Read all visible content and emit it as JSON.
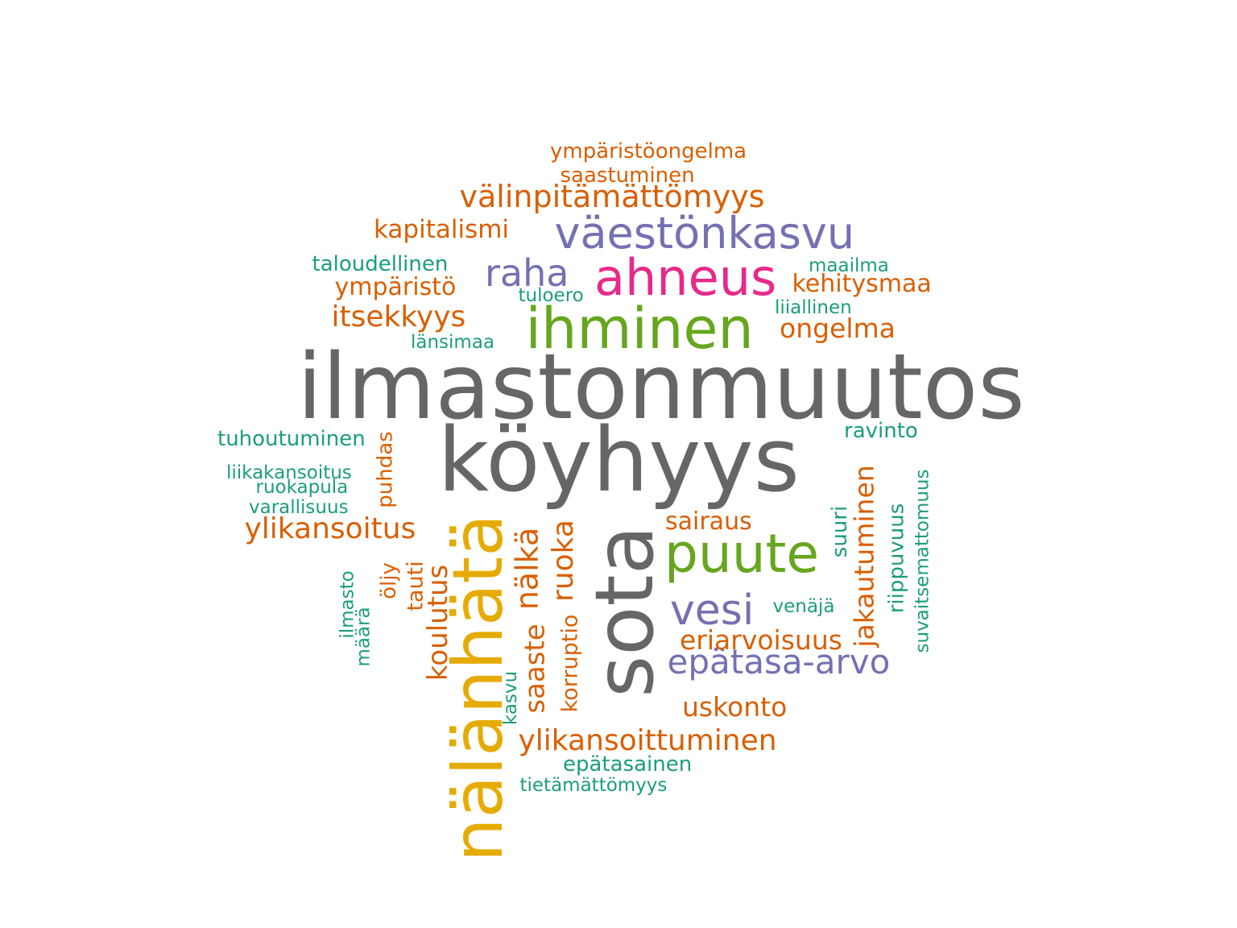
{
  "palette": {
    "dark_gray": "#666666",
    "gold": "#E6AB02",
    "green": "#66A61E",
    "magenta": "#E7298A",
    "purple": "#7570B3",
    "orange": "#D95F02",
    "teal": "#1B9E77"
  },
  "words": [
    {
      "text": "ilmastonmuutos",
      "color": "dark_gray",
      "orientation": "horizontal"
    },
    {
      "text": "köyhyys",
      "color": "dark_gray",
      "orientation": "horizontal"
    },
    {
      "text": "sota",
      "color": "dark_gray",
      "orientation": "vertical"
    },
    {
      "text": "nälänhätä",
      "color": "gold",
      "orientation": "vertical"
    },
    {
      "text": "ihminen",
      "color": "green",
      "orientation": "horizontal"
    },
    {
      "text": "puute",
      "color": "green",
      "orientation": "horizontal"
    },
    {
      "text": "ahneus",
      "color": "magenta",
      "orientation": "horizontal"
    },
    {
      "text": "väestönkasvu",
      "color": "purple",
      "orientation": "horizontal"
    },
    {
      "text": "raha",
      "color": "purple",
      "orientation": "horizontal"
    },
    {
      "text": "vesi",
      "color": "purple",
      "orientation": "horizontal"
    },
    {
      "text": "epätasa-arvo",
      "color": "purple",
      "orientation": "horizontal"
    },
    {
      "text": "ympäristöongelma",
      "color": "orange",
      "orientation": "horizontal"
    },
    {
      "text": "saastuminen",
      "color": "orange",
      "orientation": "horizontal"
    },
    {
      "text": "välinpitämättömyys",
      "color": "orange",
      "orientation": "horizontal"
    },
    {
      "text": "kapitalismi",
      "color": "orange",
      "orientation": "horizontal"
    },
    {
      "text": "ympäristö",
      "color": "orange",
      "orientation": "horizontal"
    },
    {
      "text": "kehitysmaa",
      "color": "orange",
      "orientation": "horizontal"
    },
    {
      "text": "itsekkyys",
      "color": "orange",
      "orientation": "horizontal"
    },
    {
      "text": "ongelma",
      "color": "orange",
      "orientation": "horizontal"
    },
    {
      "text": "ylikansoitus",
      "color": "orange",
      "orientation": "horizontal"
    },
    {
      "text": "sairaus",
      "color": "orange",
      "orientation": "horizontal"
    },
    {
      "text": "eriarvoisuus",
      "color": "orange",
      "orientation": "horizontal"
    },
    {
      "text": "uskonto",
      "color": "orange",
      "orientation": "horizontal"
    },
    {
      "text": "ylikansoittuminen",
      "color": "orange",
      "orientation": "horizontal"
    },
    {
      "text": "puhdas",
      "color": "orange",
      "orientation": "vertical"
    },
    {
      "text": "nälkä",
      "color": "orange",
      "orientation": "vertical"
    },
    {
      "text": "ruoka",
      "color": "orange",
      "orientation": "vertical"
    },
    {
      "text": "koulutus",
      "color": "orange",
      "orientation": "vertical"
    },
    {
      "text": "saaste",
      "color": "orange",
      "orientation": "vertical"
    },
    {
      "text": "korruptio",
      "color": "orange",
      "orientation": "vertical"
    },
    {
      "text": "tauti",
      "color": "orange",
      "orientation": "vertical"
    },
    {
      "text": "öljy",
      "color": "orange",
      "orientation": "vertical"
    },
    {
      "text": "jakautuminen",
      "color": "orange",
      "orientation": "vertical"
    },
    {
      "text": "taloudellinen",
      "color": "teal",
      "orientation": "horizontal"
    },
    {
      "text": "maailma",
      "color": "teal",
      "orientation": "horizontal"
    },
    {
      "text": "tuloero",
      "color": "teal",
      "orientation": "horizontal"
    },
    {
      "text": "liiallinen",
      "color": "teal",
      "orientation": "horizontal"
    },
    {
      "text": "länsimaa",
      "color": "teal",
      "orientation": "horizontal"
    },
    {
      "text": "tuhoutuminen",
      "color": "teal",
      "orientation": "horizontal"
    },
    {
      "text": "ravinto",
      "color": "teal",
      "orientation": "horizontal"
    },
    {
      "text": "liikakansoitus",
      "color": "teal",
      "orientation": "horizontal"
    },
    {
      "text": "ruokapula",
      "color": "teal",
      "orientation": "horizontal"
    },
    {
      "text": "varallisuus",
      "color": "teal",
      "orientation": "horizontal"
    },
    {
      "text": "venäjä",
      "color": "teal",
      "orientation": "horizontal"
    },
    {
      "text": "epätasainen",
      "color": "teal",
      "orientation": "horizontal"
    },
    {
      "text": "tietämättömyys",
      "color": "teal",
      "orientation": "horizontal"
    },
    {
      "text": "suuri",
      "color": "teal",
      "orientation": "vertical"
    },
    {
      "text": "riippuvuus",
      "color": "teal",
      "orientation": "vertical"
    },
    {
      "text": "suvaitsemattomuus",
      "color": "teal",
      "orientation": "vertical"
    },
    {
      "text": "ilmasto",
      "color": "teal",
      "orientation": "vertical"
    },
    {
      "text": "määrä",
      "color": "teal",
      "orientation": "vertical"
    },
    {
      "text": "kasvu",
      "color": "teal",
      "orientation": "vertical"
    }
  ]
}
